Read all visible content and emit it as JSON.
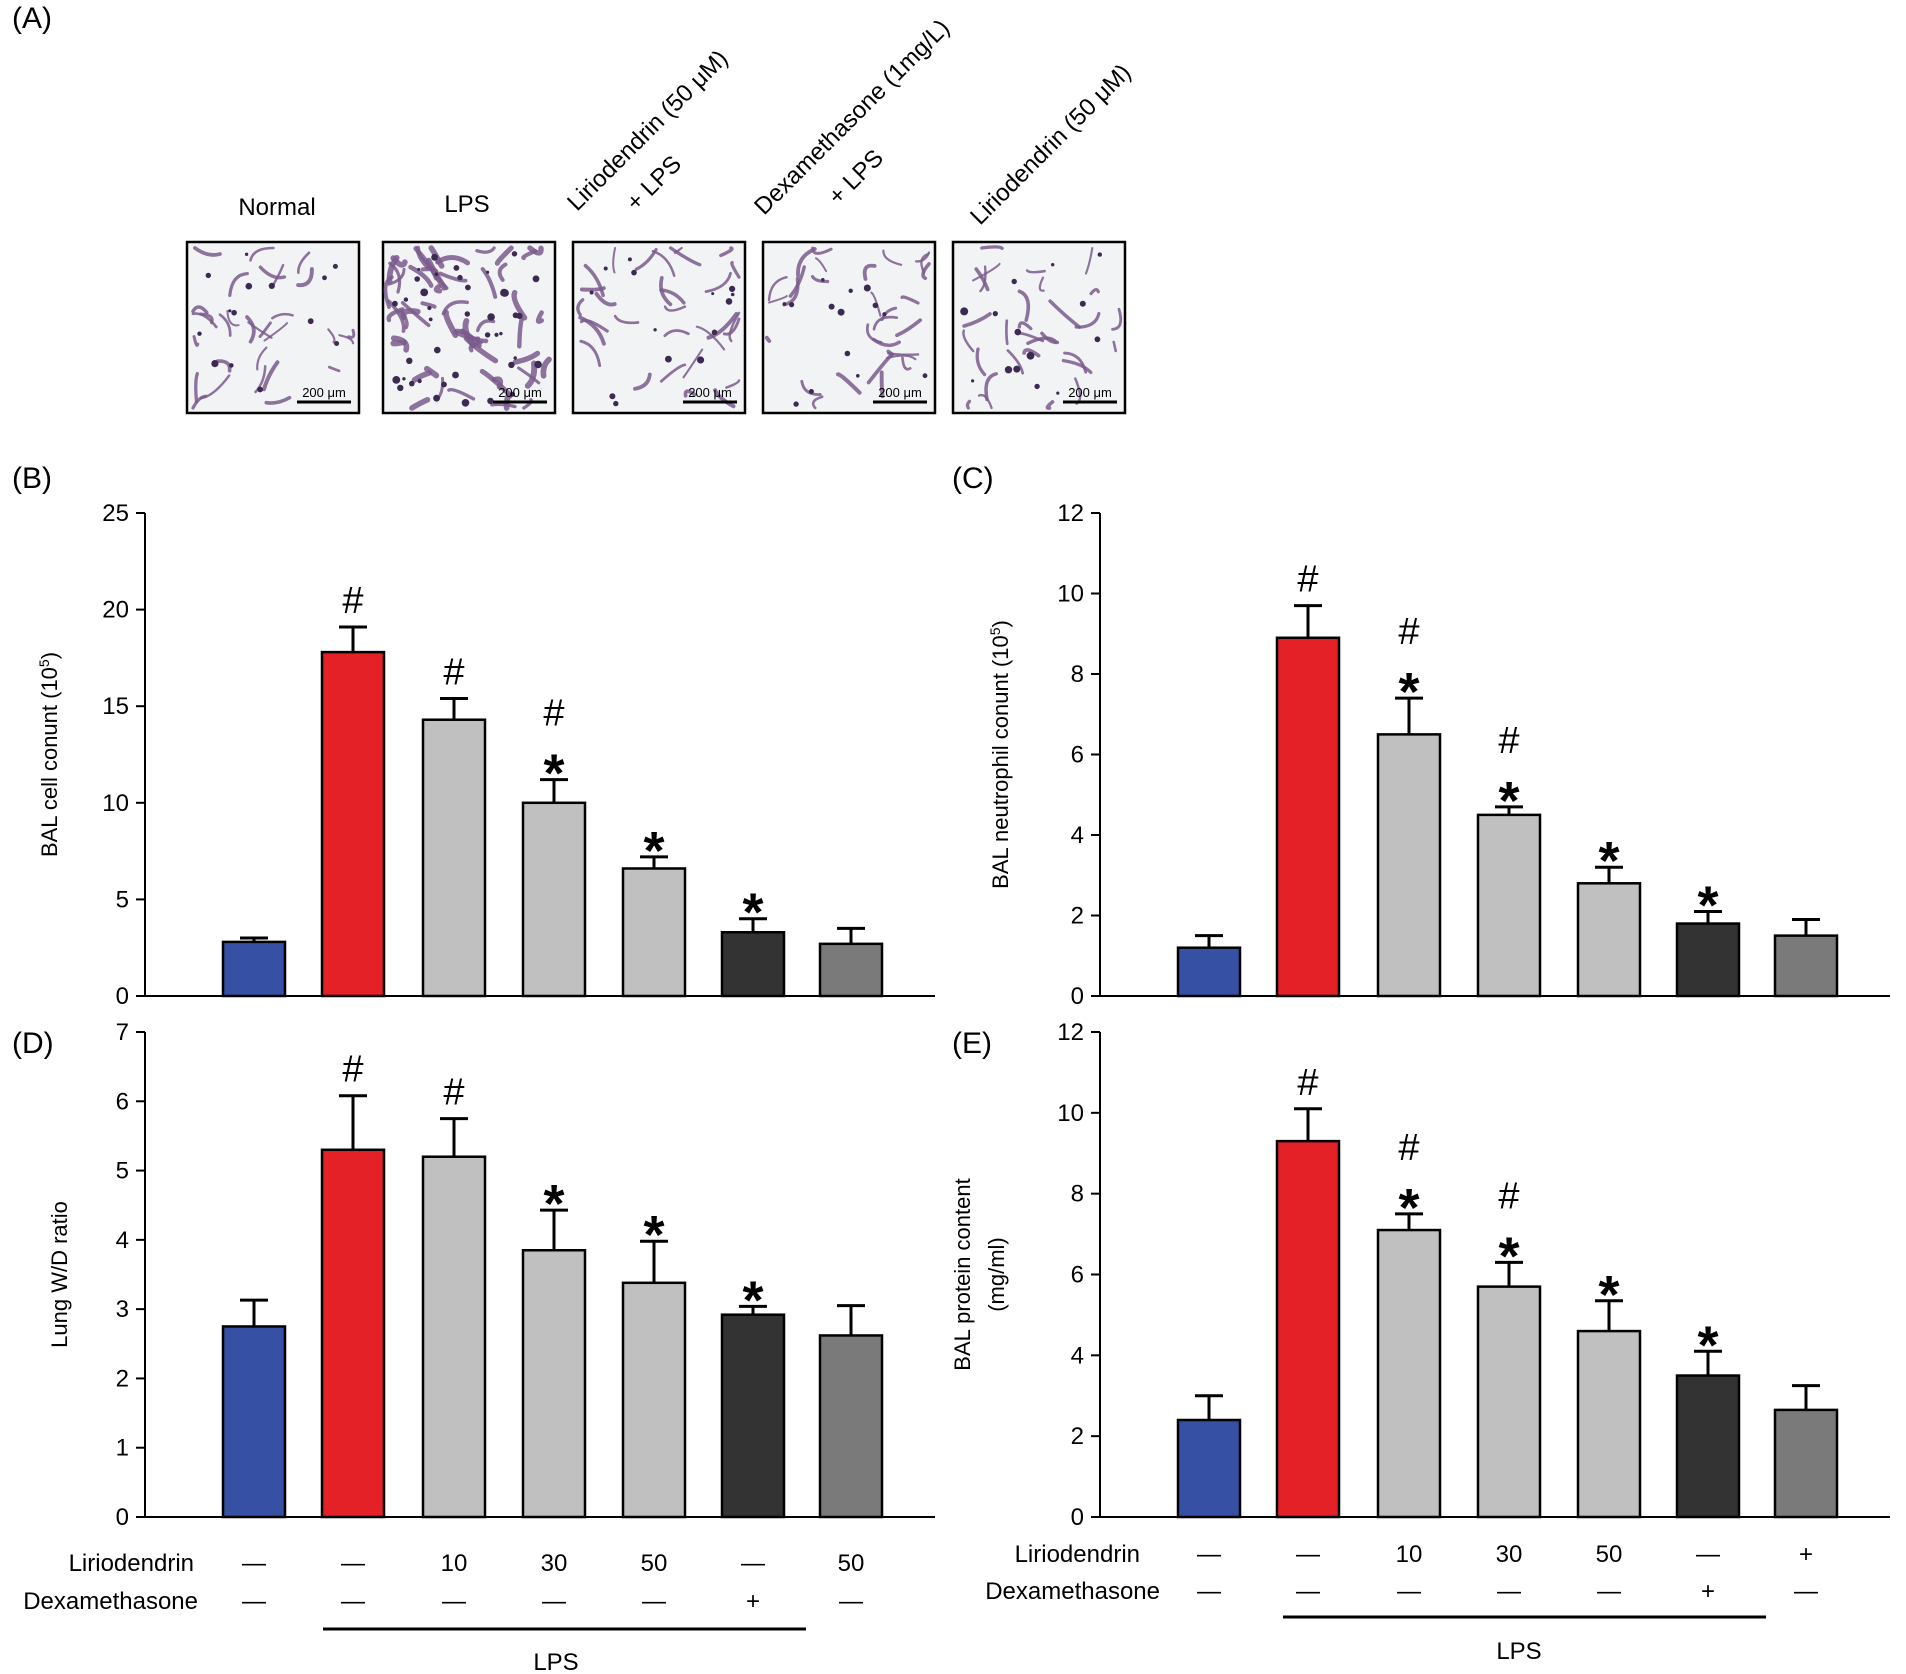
{
  "panel_a": {
    "letter": "(A)",
    "groups": [
      {
        "label": "Normal",
        "label_line2": "",
        "scale": "200 μm"
      },
      {
        "label": "LPS",
        "label_line2": "",
        "scale": "200 μm"
      },
      {
        "label": "Liriodendrin (50 μM)",
        "label_line2": "+ LPS",
        "scale": "200 μm"
      },
      {
        "label": "Dexamethasone (1mg/L)",
        "label_line2": "+ LPS",
        "scale": "200 μm"
      },
      {
        "label": "Liriodendrin (50 μM)",
        "label_line2": "",
        "scale": "200 μm"
      }
    ]
  },
  "colors": {
    "normal": "#3651a3",
    "lps": "#e42127",
    "liriodendrin_lps": "#c0c0c0",
    "dexamethasone_lps": "#333333",
    "liriodendrin_alone": "#7a7a7a",
    "tissue": "#7a5a8c"
  },
  "condition_tables": [
    {
      "liriodendrin_label": "Liriodendrin",
      "dexamethasone_label": "Dexamethasone",
      "liriodendrin": [
        "—",
        "—",
        "10",
        "30",
        "50",
        "—",
        "50"
      ],
      "dexamethasone": [
        "—",
        "—",
        "—",
        "—",
        "—",
        "+",
        "—"
      ],
      "lps_label": "LPS"
    },
    {
      "liriodendrin_label": "Liriodendrin",
      "dexamethasone_label": "Dexamethasone",
      "liriodendrin": [
        "—",
        "—",
        "10",
        "30",
        "50",
        "—",
        "+"
      ],
      "dexamethasone": [
        "—",
        "—",
        "—",
        "—",
        "—",
        "+",
        "—"
      ],
      "lps_label": "LPS"
    }
  ],
  "chart_data": [
    {
      "type": "bar",
      "panel": "(B)",
      "title": "",
      "xlabel": "",
      "ylabel": "BAL cell conunt (10",
      "ylabel_sup": "5",
      "ylabel_end": ")",
      "ylim": [
        0,
        25
      ],
      "yticks": [
        "0",
        "5",
        "10",
        "15",
        "20",
        "25"
      ],
      "values": [
        2.8,
        17.8,
        14.3,
        10.0,
        6.6,
        3.3,
        2.7
      ],
      "errors": [
        0.2,
        1.3,
        1.1,
        1.2,
        0.6,
        0.7,
        0.8
      ],
      "annotations": [
        "",
        "#",
        "#",
        "#*",
        "*",
        "*",
        ""
      ]
    },
    {
      "type": "bar",
      "panel": "(C)",
      "title": "",
      "xlabel": "",
      "ylabel": "BAL neutrophil conunt (10",
      "ylabel_sup": "5",
      "ylabel_end": ")",
      "ylim": [
        0,
        12
      ],
      "yticks": [
        "0",
        "2",
        "4",
        "6",
        "8",
        "10",
        "12"
      ],
      "values": [
        1.2,
        8.9,
        6.5,
        4.5,
        2.8,
        1.8,
        1.5
      ],
      "errors": [
        0.3,
        0.8,
        0.9,
        0.2,
        0.4,
        0.3,
        0.4
      ],
      "annotations": [
        "",
        "#",
        "#*",
        "#*",
        "*",
        "*",
        ""
      ]
    },
    {
      "type": "bar",
      "panel": "(D)",
      "title": "",
      "xlabel": "",
      "ylabel": "Lung W/D ratio",
      "ylabel_sup": "",
      "ylabel_end": "",
      "ylim": [
        0,
        7
      ],
      "yticks": [
        "0",
        "1",
        "2",
        "3",
        "4",
        "5",
        "6",
        "7"
      ],
      "values": [
        2.75,
        5.3,
        5.2,
        3.85,
        3.38,
        2.92,
        2.62
      ],
      "errors": [
        0.38,
        0.78,
        0.55,
        0.58,
        0.6,
        0.12,
        0.43
      ],
      "annotations": [
        "",
        "#",
        "#",
        "*",
        "*",
        "*",
        ""
      ]
    },
    {
      "type": "bar",
      "panel": "(E)",
      "title": "",
      "xlabel": "",
      "ylabel": "BAL protein content",
      "ylabel_line2": "(mg/ml)",
      "ylabel_sup": "",
      "ylabel_end": "",
      "ylim": [
        0,
        12
      ],
      "yticks": [
        "0",
        "2",
        "4",
        "6",
        "8",
        "10",
        "12"
      ],
      "values": [
        2.4,
        9.3,
        7.1,
        5.7,
        4.6,
        3.5,
        2.65
      ],
      "errors": [
        0.6,
        0.8,
        0.4,
        0.6,
        0.75,
        0.6,
        0.6
      ],
      "annotations": [
        "",
        "#",
        "#*",
        "#*",
        "*",
        "*",
        ""
      ]
    }
  ]
}
